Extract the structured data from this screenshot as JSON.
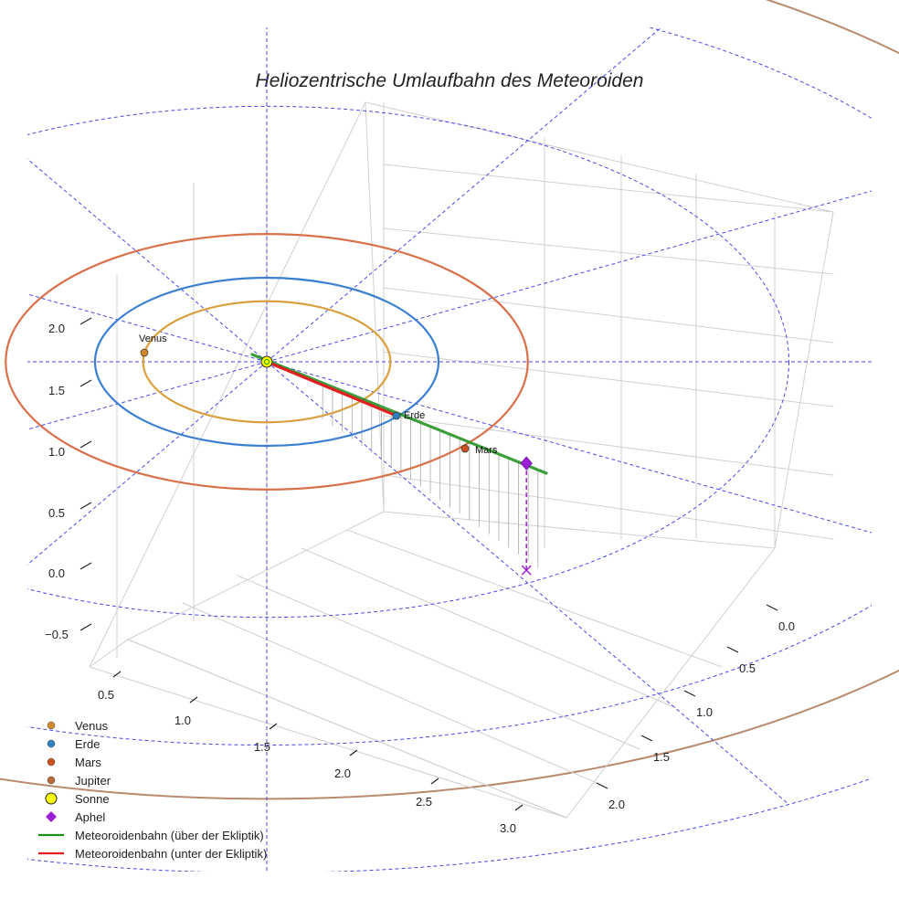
{
  "chart_data": {
    "type": "line",
    "projection": "3d",
    "title": "Heliozentrische Umlaufbahn des Meteoroiden",
    "xlabel": "",
    "ylabel": "",
    "zlabel": "",
    "x_ticks": [
      "0.5",
      "1.0",
      "1.5",
      "2.0",
      "2.5",
      "3.0"
    ],
    "y_ticks": [
      "0.0",
      "0.5",
      "1.0",
      "1.5",
      "2.0"
    ],
    "z_ticks": [
      "−0.5",
      "0.0",
      "0.5",
      "1.0",
      "1.5",
      "2.0"
    ],
    "xlim": [
      0.35,
      3.15
    ],
    "ylim": [
      -0.2,
      2.25
    ],
    "zlim": [
      -0.6,
      2.1
    ],
    "grid": true,
    "legend_position": "bottom-left",
    "sun": {
      "name": "Sonne",
      "x": 0.0,
      "y": 0.0,
      "z": 0.0
    },
    "planets": [
      {
        "name": "Venus",
        "orbit_radius_au": 0.72,
        "label": "Venus"
      },
      {
        "name": "Erde",
        "orbit_radius_au": 1.0,
        "label": "Erde"
      },
      {
        "name": "Mars",
        "orbit_radius_au": 1.52,
        "label": "Mars"
      },
      {
        "name": "Jupiter",
        "orbit_radius_au": 5.2,
        "label": ""
      }
    ],
    "reference_circles_au": [
      1.0,
      2.0,
      3.0,
      4.0
    ],
    "series": [
      {
        "name": "Meteoroidenbahn (über der Ekliptik)",
        "x": [
          0.0,
          3.0
        ],
        "y": [
          0.0,
          2.0
        ],
        "z": [
          0.0,
          0.02
        ]
      },
      {
        "name": "Meteoroidenbahn (unter der Ekliptik)",
        "x": [
          0.0,
          1.0
        ],
        "y": [
          0.0,
          0.6
        ],
        "z": [
          0.0,
          -0.02
        ]
      }
    ],
    "aphel": {
      "name": "Aphel",
      "x": 2.9,
      "y": 1.95,
      "z": 0.02
    },
    "legend": [
      {
        "label": "Venus",
        "kind": "dot",
        "color": "#d08a2c"
      },
      {
        "label": "Erde",
        "kind": "dot",
        "color": "#2f7fc1"
      },
      {
        "label": "Mars",
        "kind": "dot",
        "color": "#cc5020"
      },
      {
        "label": "Jupiter",
        "kind": "dot",
        "color": "#b86a3a"
      },
      {
        "label": "Sonne",
        "kind": "sun",
        "color": "#ffff00"
      },
      {
        "label": "Aphel",
        "kind": "diamond",
        "color": "#9b1fd6"
      },
      {
        "label": "Meteoroidenbahn (über der Ekliptik)",
        "kind": "line",
        "color": "#1a8f1a"
      },
      {
        "label": "Meteoroidenbahn (unter der Ekliptik)",
        "kind": "line",
        "color": "#e02020"
      }
    ],
    "colors": {
      "venus_orbit": "#d8a040",
      "earth_orbit": "#3a7fd0",
      "mars_orbit": "#d8704a",
      "jupiter_orbit": "#b98a6e",
      "reference": "#4a4ae6",
      "path_above": "#1a8f1a",
      "path_below": "#e02020",
      "aphel": "#9b1fd6",
      "grid": "#d0d0d0",
      "drop_lines": "#aaaaaa"
    }
  }
}
